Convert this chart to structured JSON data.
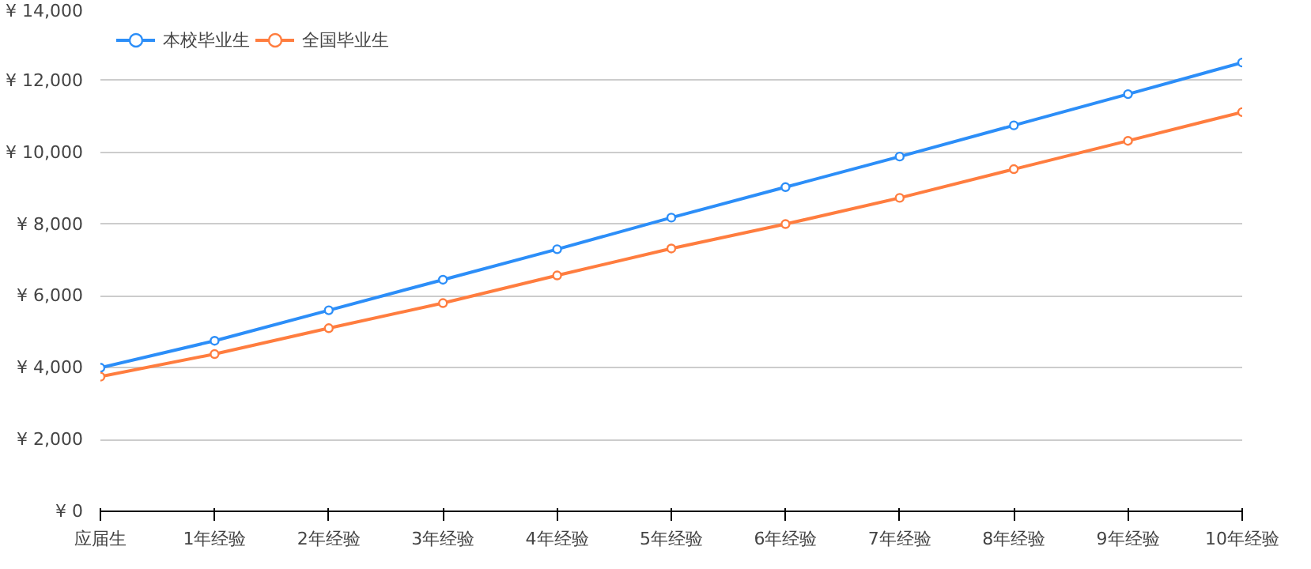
{
  "chart_data": {
    "type": "line",
    "categories": [
      "应届生",
      "1年经验",
      "2年经验",
      "3年经验",
      "4年经验",
      "5年经验",
      "6年经验",
      "7年经验",
      "8年经验",
      "9年经验",
      "10年经验"
    ],
    "series": [
      {
        "name": "本校毕业生",
        "color": "#2c8ef8",
        "values": [
          4000,
          4750,
          5600,
          6450,
          7300,
          8180,
          9030,
          9880,
          10750,
          11620,
          12500
        ]
      },
      {
        "name": "全国毕业生",
        "color": "#ff7d3f",
        "values": [
          3750,
          4380,
          5100,
          5800,
          6570,
          7320,
          8000,
          8730,
          9530,
          10320,
          11120
        ]
      }
    ],
    "ylim": [
      0,
      14000
    ],
    "yticks": [
      {
        "value": 0,
        "label": "¥ 0"
      },
      {
        "value": 2000,
        "label": "¥ 2,000"
      },
      {
        "value": 4000,
        "label": "¥ 4,000"
      },
      {
        "value": 6000,
        "label": "¥ 6,000"
      },
      {
        "value": 8000,
        "label": "¥ 8,000"
      },
      {
        "value": 10000,
        "label": "¥ 10,000"
      },
      {
        "value": 12000,
        "label": "¥ 12,000"
      },
      {
        "value": 14000,
        "label": "¥ 14,000"
      }
    ],
    "grid": "y",
    "legend": "top left",
    "marker": "circle",
    "line_style": "solid"
  }
}
